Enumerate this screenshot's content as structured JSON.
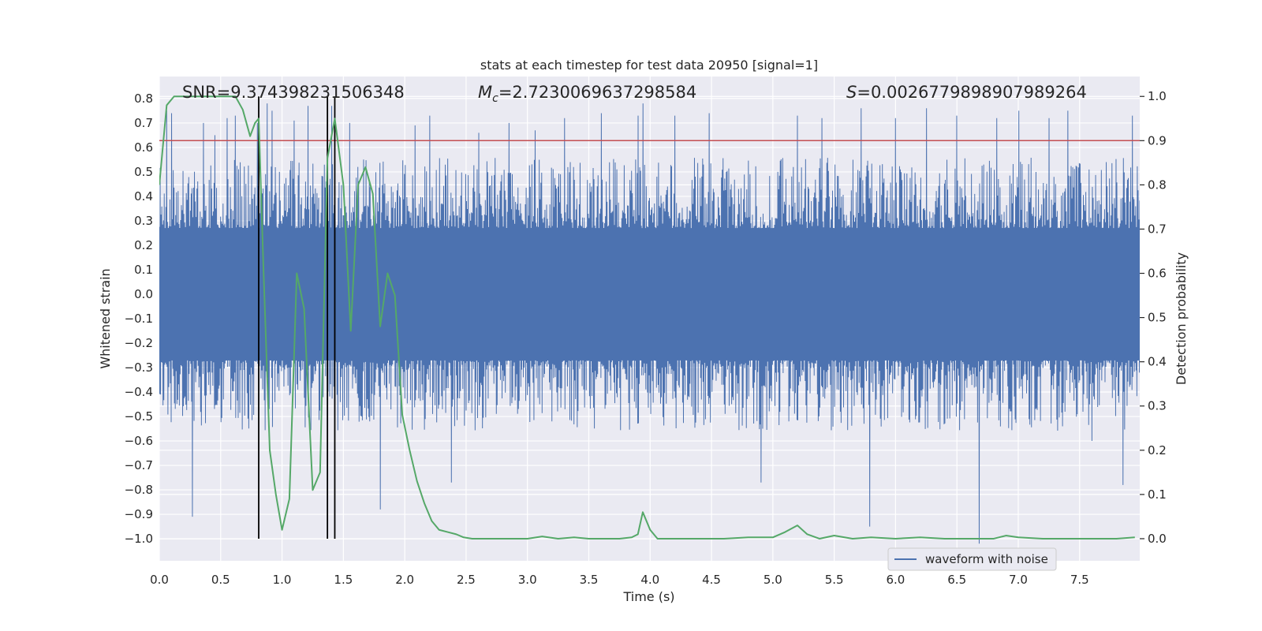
{
  "chart_data": {
    "type": "line",
    "title": "stats at each timestep for test data 20950 [signal=1]",
    "xlabel": "Time (s)",
    "ylabel_left": "Whitened strain",
    "ylabel_right": "Detection probability",
    "xlim": [
      0.0,
      7.99
    ],
    "ylim_left": [
      -1.09,
      0.89
    ],
    "ylim_right": [
      -0.05,
      1.045
    ],
    "x_ticks": [
      0.0,
      0.5,
      1.0,
      1.5,
      2.0,
      2.5,
      3.0,
      3.5,
      4.0,
      4.5,
      5.0,
      5.5,
      6.0,
      6.5,
      7.0,
      7.5
    ],
    "x_tick_labels": [
      "0.0",
      "0.5",
      "1.0",
      "1.5",
      "2.0",
      "2.5",
      "3.0",
      "3.5",
      "4.0",
      "4.5",
      "5.0",
      "5.5",
      "6.0",
      "6.5",
      "7.0",
      "7.5"
    ],
    "y_ticks_left": [
      0.8,
      0.7,
      0.6,
      0.5,
      0.4,
      0.3,
      0.2,
      0.1,
      0.0,
      -0.1,
      -0.2,
      -0.3,
      -0.4,
      -0.5,
      -0.6,
      -0.7,
      -0.8,
      -0.9,
      -1.0
    ],
    "y_tick_labels_left": [
      "0.8",
      "0.7",
      "0.6",
      "0.5",
      "0.4",
      "0.3",
      "0.2",
      "0.1",
      "0.0",
      "−0.1",
      "−0.2",
      "−0.3",
      "−0.4",
      "−0.5",
      "−0.6",
      "−0.7",
      "−0.8",
      "−0.9",
      "−1.0"
    ],
    "y_ticks_right": [
      1.0,
      0.9,
      0.8,
      0.7,
      0.6,
      0.5,
      0.4,
      0.3,
      0.2,
      0.1,
      0.0
    ],
    "y_tick_labels_right": [
      "1.0",
      "0.9",
      "0.8",
      "0.7",
      "0.6",
      "0.5",
      "0.4",
      "0.3",
      "0.2",
      "0.1",
      "0.0"
    ],
    "annotations": {
      "snr": "SNR=9.374398231506348",
      "mc_symbol": "M",
      "mc_sub": "c",
      "mc_value": "=2.7230069637298584",
      "s_symbol": "S",
      "s_value": "=0.0026779898907989264"
    },
    "threshold": {
      "value": 0.9,
      "axis": "right",
      "color": "#c44e52"
    },
    "vertical_lines": [
      0.81,
      1.37,
      1.43
    ],
    "legend": {
      "label": "waveform with noise",
      "position": "lower-right"
    },
    "waveform": {
      "name": "waveform with noise",
      "color": "#4c72b0",
      "band": 0.27,
      "typical_peak": 0.45,
      "spikes": [
        [
          0.06,
          0.75
        ],
        [
          0.1,
          0.74
        ],
        [
          0.27,
          -0.91
        ],
        [
          0.36,
          0.7
        ],
        [
          0.45,
          0.65
        ],
        [
          0.55,
          0.72
        ],
        [
          0.62,
          0.73
        ],
        [
          0.8,
          0.7
        ],
        [
          0.88,
          0.78
        ],
        [
          0.92,
          0.75
        ],
        [
          1.1,
          0.71
        ],
        [
          1.21,
          0.77
        ],
        [
          1.4,
          0.77
        ],
        [
          1.55,
          0.7
        ],
        [
          1.8,
          -0.88
        ],
        [
          2.08,
          0.69
        ],
        [
          2.2,
          0.73
        ],
        [
          2.38,
          -0.77
        ],
        [
          2.6,
          0.66
        ],
        [
          2.85,
          0.7
        ],
        [
          3.06,
          0.67
        ],
        [
          3.3,
          0.72
        ],
        [
          3.6,
          0.74
        ],
        [
          3.9,
          0.73
        ],
        [
          3.94,
          0.78
        ],
        [
          4.2,
          0.73
        ],
        [
          4.48,
          0.74
        ],
        [
          4.9,
          -0.77
        ],
        [
          5.2,
          0.73
        ],
        [
          5.4,
          0.72
        ],
        [
          5.72,
          0.76
        ],
        [
          5.79,
          -0.95
        ],
        [
          6.0,
          0.72
        ],
        [
          6.25,
          0.76
        ],
        [
          6.5,
          0.73
        ],
        [
          6.68,
          -1.02
        ],
        [
          6.82,
          0.72
        ],
        [
          7.0,
          0.75
        ],
        [
          7.25,
          0.72
        ],
        [
          7.4,
          0.75
        ],
        [
          7.6,
          -0.6
        ],
        [
          7.85,
          -0.78
        ],
        [
          7.93,
          0.73
        ]
      ]
    },
    "probability": {
      "name": "detection probability",
      "color": "#55a868",
      "x": [
        0.0,
        0.06,
        0.12,
        0.2,
        0.3,
        0.4,
        0.5,
        0.62,
        0.68,
        0.74,
        0.78,
        0.81,
        0.85,
        0.9,
        0.95,
        1.0,
        1.06,
        1.12,
        1.18,
        1.25,
        1.31,
        1.37,
        1.43,
        1.5,
        1.56,
        1.62,
        1.68,
        1.74,
        1.8,
        1.86,
        1.92,
        1.98,
        2.04,
        2.1,
        2.16,
        2.22,
        2.28,
        2.35,
        2.42,
        2.48,
        2.55,
        3.0,
        3.12,
        3.25,
        3.38,
        3.5,
        3.62,
        3.75,
        3.85,
        3.9,
        3.94,
        4.0,
        4.06,
        4.2,
        4.4,
        4.6,
        4.8,
        5.0,
        5.1,
        5.2,
        5.28,
        5.38,
        5.5,
        5.65,
        5.8,
        6.0,
        6.2,
        6.4,
        6.6,
        6.8,
        6.9,
        7.0,
        7.2,
        7.5,
        7.8,
        7.95
      ],
      "y": [
        0.8,
        0.98,
        1.0,
        1.0,
        1.0,
        1.0,
        1.0,
        1.0,
        0.97,
        0.91,
        0.94,
        0.95,
        0.6,
        0.2,
        0.1,
        0.02,
        0.09,
        0.6,
        0.52,
        0.11,
        0.15,
        0.86,
        0.95,
        0.8,
        0.47,
        0.8,
        0.84,
        0.78,
        0.48,
        0.6,
        0.55,
        0.28,
        0.2,
        0.13,
        0.08,
        0.04,
        0.02,
        0.015,
        0.01,
        0.003,
        0.0,
        0.0,
        0.005,
        0.0,
        0.003,
        0.0,
        0.0,
        0.0,
        0.003,
        0.01,
        0.06,
        0.02,
        0.0,
        0.0,
        0.0,
        0.0,
        0.003,
        0.003,
        0.015,
        0.03,
        0.01,
        0.0,
        0.007,
        0.0,
        0.003,
        0.0,
        0.003,
        0.0,
        0.0,
        0.0,
        0.007,
        0.003,
        0.0,
        0.0,
        0.0,
        0.003
      ]
    }
  }
}
